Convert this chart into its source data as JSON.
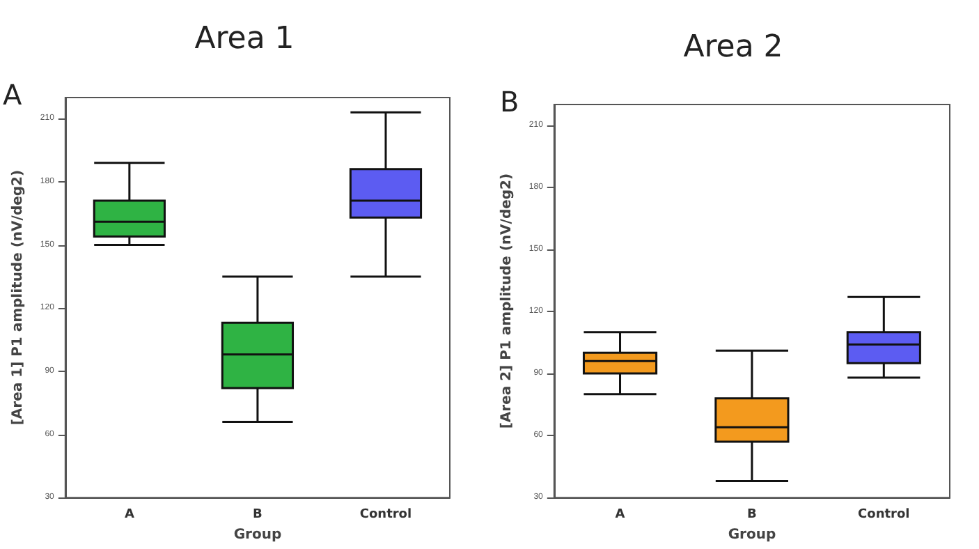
{
  "chart_data": [
    {
      "type": "box",
      "title": "Area 1",
      "xlabel": "Group",
      "ylabel": "[Area 1] P1 amplitude (nV/deg2)",
      "annotations": [
        "A"
      ],
      "categories": [
        "A",
        "B",
        "Control"
      ],
      "colors": [
        "#2fb344",
        "#2fb344",
        "#5c5cf2"
      ],
      "ylim": [
        30,
        220
      ],
      "yticks": [
        30,
        60,
        90,
        120,
        150,
        180,
        210
      ],
      "boxes": [
        {
          "low": 150,
          "q1": 154,
          "median": 161,
          "q3": 171,
          "high": 189
        },
        {
          "low": 66,
          "q1": 82,
          "median": 98,
          "q3": 113,
          "high": 135
        },
        {
          "low": 135,
          "q1": 163,
          "median": 171,
          "q3": 186,
          "high": 213
        }
      ]
    },
    {
      "type": "box",
      "title": "Area 2",
      "xlabel": "Group",
      "ylabel": "[Area 2] P1 amplitude (nV/deg2)",
      "annotations": [
        "B"
      ],
      "categories": [
        "A",
        "B",
        "Control"
      ],
      "colors": [
        "#f39a1e",
        "#f39a1e",
        "#5c5cf2"
      ],
      "ylim": [
        30,
        220
      ],
      "yticks": [
        30,
        60,
        90,
        120,
        150,
        180,
        210
      ],
      "boxes": [
        {
          "low": 80,
          "q1": 90,
          "median": 96,
          "q3": 100,
          "high": 110
        },
        {
          "low": 38,
          "q1": 57,
          "median": 64,
          "q3": 78,
          "high": 101
        },
        {
          "low": 88,
          "q1": 95,
          "median": 104,
          "q3": 110,
          "high": 127
        }
      ]
    }
  ]
}
